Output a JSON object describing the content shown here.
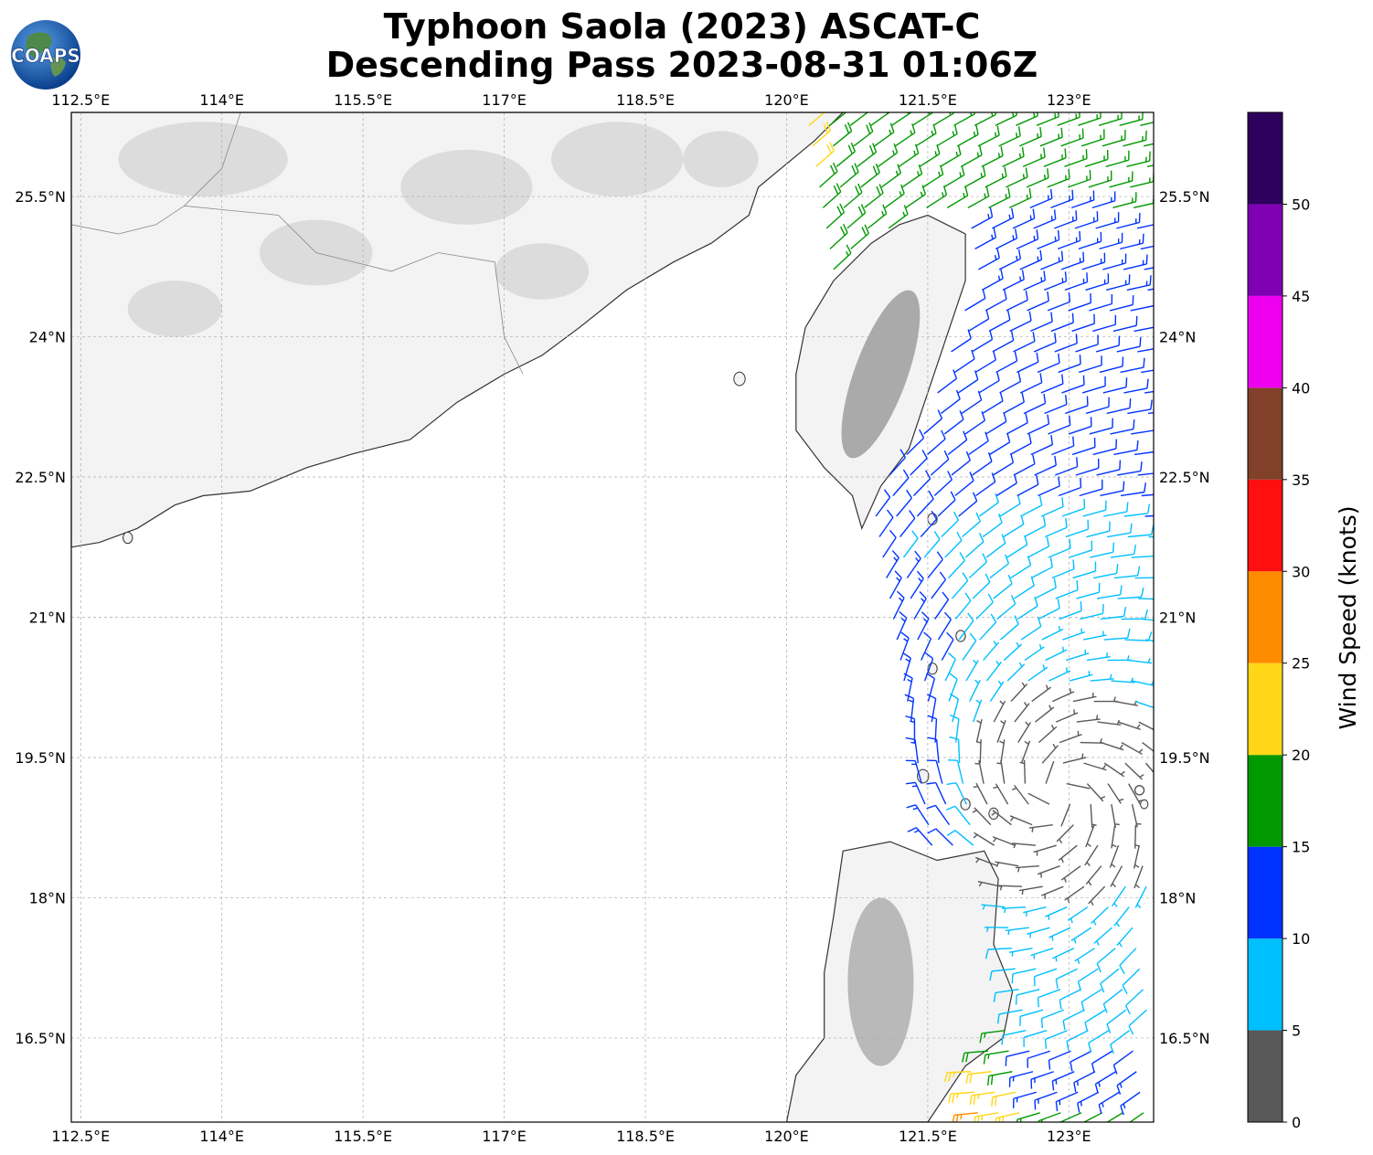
{
  "title": {
    "line1": "Typhoon Saola (2023) ASCAT-C",
    "line2": "Descending Pass 2023-08-31 01:06Z"
  },
  "logo": {
    "text": "COAPS",
    "icon": "globe-logo-icon"
  },
  "map": {
    "lon_range": [
      112.4,
      123.9
    ],
    "lat_range": [
      15.6,
      26.4
    ],
    "lon_ticks": [
      {
        "value": 112.5,
        "label": "112.5°E"
      },
      {
        "value": 114,
        "label": "114°E"
      },
      {
        "value": 115.5,
        "label": "115.5°E"
      },
      {
        "value": 117,
        "label": "117°E"
      },
      {
        "value": 118.5,
        "label": "118.5°E"
      },
      {
        "value": 120,
        "label": "120°E"
      },
      {
        "value": 121.5,
        "label": "121.5°E"
      },
      {
        "value": 123,
        "label": "123°E"
      }
    ],
    "lat_ticks": [
      {
        "value": 25.5,
        "label": "25.5°N"
      },
      {
        "value": 24,
        "label": "24°N"
      },
      {
        "value": 22.5,
        "label": "22.5°N"
      },
      {
        "value": 21,
        "label": "21°N"
      },
      {
        "value": 19.5,
        "label": "19.5°N"
      },
      {
        "value": 18,
        "label": "18°N"
      },
      {
        "value": 16.5,
        "label": "16.5°N"
      }
    ],
    "gridlines": true,
    "land_colors": {
      "land": "#f3f3f3",
      "terrain": "#c8c8c8",
      "coast": "#333333"
    }
  },
  "colorbar": {
    "label": "Wind Speed (knots)",
    "bins": [
      {
        "from": 0,
        "to": 5,
        "color": "#595959"
      },
      {
        "from": 5,
        "to": 10,
        "color": "#00bfff"
      },
      {
        "from": 10,
        "to": 15,
        "color": "#0033ff"
      },
      {
        "from": 15,
        "to": 20,
        "color": "#009900"
      },
      {
        "from": 20,
        "to": 25,
        "color": "#ffd716"
      },
      {
        "from": 25,
        "to": 30,
        "color": "#ff8c00"
      },
      {
        "from": 30,
        "to": 35,
        "color": "#ff0f0f"
      },
      {
        "from": 35,
        "to": 40,
        "color": "#80402a"
      },
      {
        "from": 40,
        "to": 45,
        "color": "#ee00ee"
      },
      {
        "from": 45,
        "to": 50,
        "color": "#8000b3"
      },
      {
        "from": 50,
        "to": 55,
        "color": "#2e005e"
      }
    ],
    "ticks": [
      "0",
      "5",
      "10",
      "15",
      "20",
      "25",
      "30",
      "35",
      "40",
      "45",
      "50"
    ]
  }
}
